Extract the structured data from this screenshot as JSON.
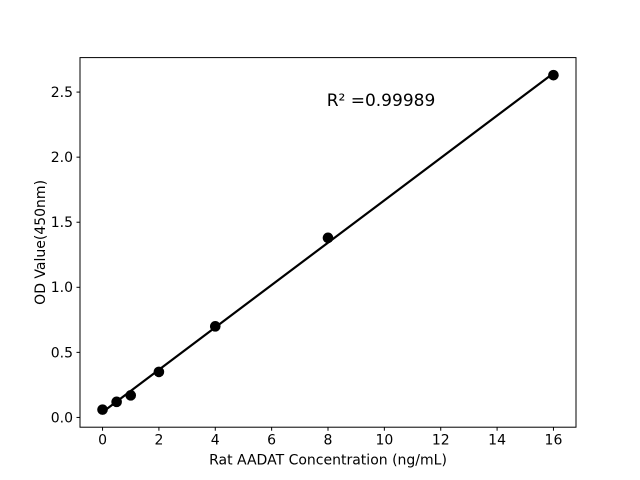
{
  "chart_data": {
    "type": "scatter",
    "title": "",
    "xlabel": "Rat AADAT Concentration (ng/mL)",
    "ylabel": "OD Value(450nm)",
    "annotation": "R² =0.99989",
    "r_squared": 0.99989,
    "x": [
      0,
      0.5,
      1,
      2,
      4,
      8,
      16
    ],
    "y": [
      0.06,
      0.12,
      0.17,
      0.35,
      0.7,
      1.38,
      2.63
    ],
    "fit_line": {
      "x1": 0,
      "y1": 0.041,
      "x2": 16,
      "y2": 2.645
    },
    "x_ticks": [
      "0",
      "2",
      "4",
      "6",
      "8",
      "10",
      "12",
      "14",
      "16"
    ],
    "y_ticks": [
      "0.0",
      "0.5",
      "1.0",
      "1.5",
      "2.0",
      "2.5"
    ],
    "xlim": [
      -0.8,
      16.8
    ],
    "ylim": [
      -0.075,
      2.765
    ],
    "grid": false,
    "legend": null,
    "colors": {
      "marker": "#000000",
      "line": "#000000",
      "axis": "#000000",
      "background": "#ffffff"
    }
  }
}
